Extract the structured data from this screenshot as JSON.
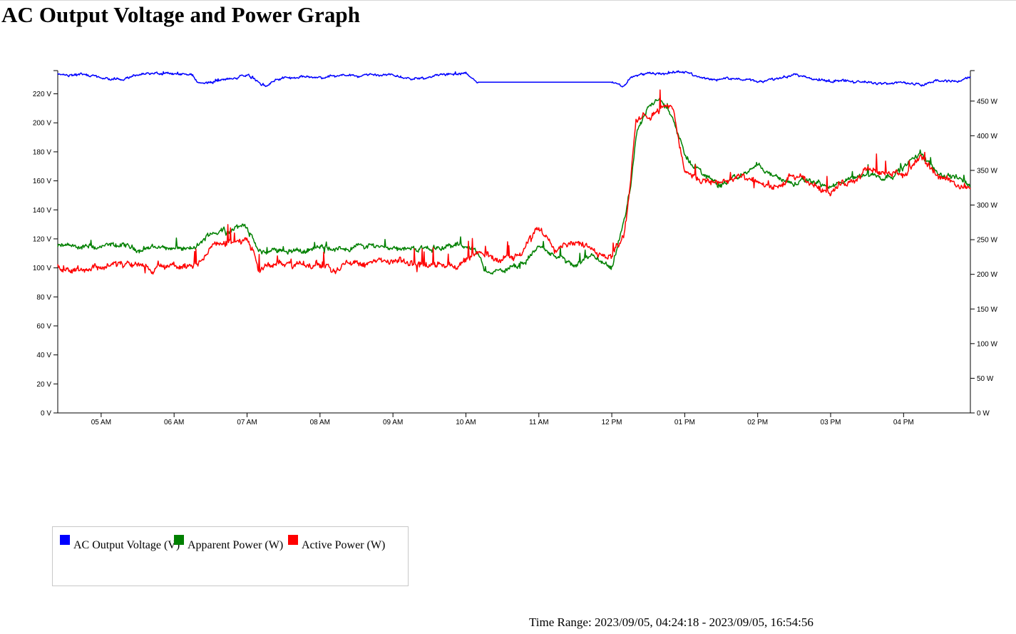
{
  "title": "AC Output Voltage and Power Graph",
  "legend": {
    "items": [
      {
        "label": "AC Output Voltage (V)",
        "color": "#0000ff"
      },
      {
        "label": "Apparent Power (W)",
        "color": "#008000"
      },
      {
        "label": "Active Power (W)",
        "color": "#ff0000"
      }
    ]
  },
  "time_range": {
    "label": "Time Range:",
    "value": "2023/09/05, 04:24:18 - 2023/09/05, 16:54:56"
  },
  "chart_data": {
    "type": "line",
    "title": "AC Output Voltage and Power Graph",
    "x_axis": {
      "start": "2023-09-05T04:24:18",
      "end": "2023-09-05T16:54:56",
      "tick_labels": [
        "05 AM",
        "06 AM",
        "07 AM",
        "08 AM",
        "09 AM",
        "10 AM",
        "11 AM",
        "12 PM",
        "01 PM",
        "02 PM",
        "03 PM",
        "04 PM"
      ]
    },
    "y_axis_left": {
      "unit": "V",
      "ylim": [
        0,
        236
      ],
      "tick_labels": [
        "0 V",
        "20 V",
        "40 V",
        "60 V",
        "80 V",
        "100 V",
        "120 V",
        "140 V",
        "160 V",
        "180 V",
        "200 V",
        "220 V"
      ]
    },
    "y_axis_right": {
      "unit": "W",
      "ylim": [
        0,
        494
      ],
      "tick_labels": [
        "0 W",
        "50 W",
        "100 W",
        "150 W",
        "200 W",
        "250 W",
        "300 W",
        "350 W",
        "400 W",
        "450 W"
      ]
    },
    "grid": false,
    "legend_position": "bottom-left",
    "x": [
      "04:24",
      "04:45",
      "05:00",
      "05:15",
      "05:30",
      "05:45",
      "06:00",
      "06:15",
      "06:20",
      "06:30",
      "06:45",
      "07:00",
      "07:10",
      "07:15",
      "07:30",
      "07:45",
      "08:00",
      "08:15",
      "08:30",
      "08:45",
      "09:00",
      "09:15",
      "09:30",
      "09:45",
      "10:00",
      "10:10",
      "10:15",
      "10:30",
      "10:45",
      "11:00",
      "11:15",
      "11:30",
      "11:45",
      "12:00",
      "12:10",
      "12:15",
      "12:20",
      "12:30",
      "12:40",
      "12:50",
      "13:00",
      "13:15",
      "13:30",
      "13:45",
      "14:00",
      "14:15",
      "14:30",
      "14:45",
      "15:00",
      "15:15",
      "15:30",
      "15:45",
      "16:00",
      "16:15",
      "16:30",
      "16:45",
      "16:54"
    ],
    "series": [
      {
        "name": "AC Output Voltage (V)",
        "axis": "left",
        "color": "#0000ff",
        "values": [
          234,
          233,
          231,
          229,
          233,
          234,
          234,
          233,
          227,
          228,
          230,
          233,
          228,
          226,
          231,
          232,
          231,
          232,
          233,
          234,
          233,
          231,
          232,
          233,
          234,
          228,
          228,
          228,
          228,
          228,
          228,
          228,
          228,
          228,
          225,
          231,
          233,
          234,
          234,
          235,
          235,
          231,
          230,
          231,
          228,
          230,
          234,
          230,
          229,
          229,
          228,
          227,
          228,
          226,
          229,
          228,
          231
        ]
      },
      {
        "name": "Apparent Power (W)",
        "axis": "right",
        "color": "#008000",
        "values": [
          240,
          240,
          238,
          242,
          236,
          240,
          238,
          236,
          240,
          260,
          265,
          270,
          230,
          232,
          236,
          234,
          238,
          236,
          240,
          242,
          240,
          236,
          238,
          240,
          242,
          230,
          205,
          205,
          212,
          240,
          225,
          210,
          225,
          205,
          275,
          320,
          400,
          445,
          450,
          430,
          370,
          345,
          330,
          340,
          360,
          340,
          330,
          335,
          325,
          335,
          345,
          340,
          355,
          375,
          345,
          340,
          330
        ]
      },
      {
        "name": "Active Power (W)",
        "axis": "right",
        "color": "#ff0000",
        "values": [
          210,
          208,
          212,
          215,
          210,
          208,
          212,
          210,
          210,
          240,
          245,
          252,
          210,
          212,
          215,
          212,
          214,
          210,
          218,
          216,
          218,
          215,
          214,
          212,
          218,
          230,
          225,
          225,
          228,
          270,
          240,
          250,
          230,
          230,
          255,
          330,
          420,
          430,
          440,
          440,
          350,
          330,
          335,
          340,
          330,
          325,
          340,
          330,
          320,
          335,
          350,
          345,
          345,
          365,
          340,
          330,
          325
        ]
      }
    ]
  }
}
